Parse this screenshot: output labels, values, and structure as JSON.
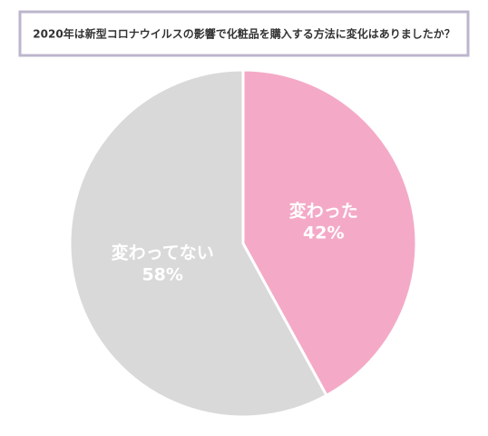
{
  "chart_data": {
    "type": "pie",
    "title": "2020年は新型コロナウイルスの影響で化粧品を購入する方法に変化はありましたか？",
    "categories": [
      "変わった",
      "変わってない"
    ],
    "values": [
      42,
      58
    ],
    "value_labels": [
      "42%",
      "58%"
    ],
    "colors": [
      "#f4aac7",
      "#d9d9d9"
    ]
  }
}
